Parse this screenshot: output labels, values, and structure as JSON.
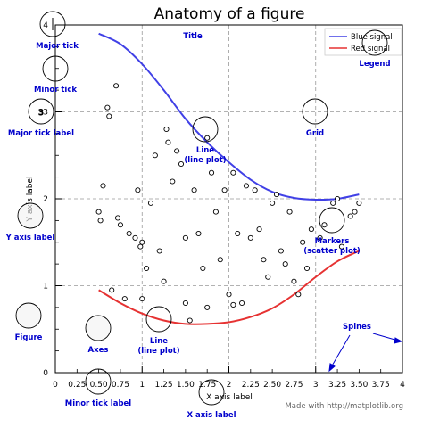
{
  "chart_data": {
    "type": "line",
    "title": "Anatomy of a figure",
    "xlabel": "X axis label",
    "ylabel": "Y axis label",
    "xlim": [
      0,
      4
    ],
    "ylim": [
      0,
      4
    ],
    "grid": true,
    "legend_placement": "top-right",
    "major_x_ticks": [
      0,
      1,
      2,
      3,
      4
    ],
    "minor_x_ticks": [
      "0.25",
      "0.50",
      "0.75",
      "1.25",
      "1.50",
      "1.75",
      "2.25",
      "2.50",
      "2.75",
      "3.25",
      "3.50",
      "3.75"
    ],
    "major_y_ticks": [
      0,
      1,
      2,
      3,
      4
    ],
    "series": [
      {
        "name": "Blue signal",
        "color": "#4040e6",
        "x": [
          0.5,
          0.75,
          1.0,
          1.25,
          1.5,
          1.75,
          2.0,
          2.25,
          2.5,
          2.75,
          3.0,
          3.25,
          3.5
        ],
        "y": [
          3.9,
          3.78,
          3.55,
          3.25,
          2.92,
          2.65,
          2.42,
          2.22,
          2.08,
          2.01,
          1.99,
          2.0,
          2.05
        ]
      },
      {
        "name": "Red signal",
        "color": "#e63232",
        "x": [
          0.5,
          0.75,
          1.0,
          1.25,
          1.5,
          1.75,
          2.0,
          2.25,
          2.5,
          2.75,
          3.0,
          3.25,
          3.5
        ],
        "y": [
          0.95,
          0.8,
          0.68,
          0.6,
          0.56,
          0.56,
          0.58,
          0.64,
          0.74,
          0.9,
          1.1,
          1.28,
          1.4
        ]
      }
    ],
    "scatter": {
      "name": "Markers",
      "x": [
        0.7,
        0.6,
        0.55,
        0.5,
        0.52,
        0.62,
        0.72,
        0.75,
        0.85,
        0.95,
        1.0,
        1.05,
        1.1,
        1.15,
        1.2,
        1.25,
        1.28,
        1.3,
        1.35,
        1.4,
        1.45,
        1.5,
        1.55,
        1.6,
        1.65,
        1.7,
        1.75,
        1.8,
        1.85,
        1.9,
        1.95,
        2.0,
        2.05,
        2.1,
        2.15,
        2.2,
        2.25,
        2.3,
        2.35,
        2.4,
        2.45,
        2.5,
        2.55,
        2.6,
        2.65,
        2.7,
        2.75,
        2.8,
        2.85,
        2.9,
        2.95,
        3.05,
        3.1,
        3.2,
        3.25,
        3.3,
        3.4,
        3.45,
        3.5,
        0.65,
        0.8,
        1.0,
        1.5,
        1.75,
        2.05,
        0.98,
        0.92
      ],
      "y": [
        3.3,
        3.05,
        2.15,
        1.85,
        1.75,
        2.95,
        1.78,
        1.7,
        1.6,
        2.1,
        1.5,
        1.2,
        1.95,
        2.5,
        1.4,
        1.05,
        2.8,
        2.65,
        2.2,
        2.55,
        2.4,
        1.55,
        0.6,
        2.1,
        1.6,
        1.2,
        2.7,
        2.3,
        1.85,
        1.3,
        2.1,
        0.9,
        2.3,
        1.6,
        0.8,
        2.15,
        1.55,
        2.1,
        1.65,
        1.3,
        1.1,
        1.95,
        2.05,
        1.4,
        1.25,
        1.85,
        1.05,
        0.9,
        1.5,
        1.2,
        1.65,
        1.55,
        1.7,
        1.95,
        2.0,
        1.45,
        1.8,
        1.85,
        1.95,
        0.95,
        0.85,
        0.85,
        0.8,
        0.75,
        0.78,
        1.45,
        1.55
      ]
    }
  },
  "annotations": {
    "major_tick": "Major tick",
    "minor_tick": "Minor tick",
    "major_tick_label": "Major tick label",
    "title": "Title",
    "legend": "Legend",
    "grid": "Grid",
    "y_axis_label": "Y axis label",
    "line_plot_1": "Line",
    "line_plot_1b": "(line plot)",
    "markers": "Markers",
    "markers_b": "(scatter plot)",
    "figure": "Figure",
    "axes": "Axes",
    "line_plot_2": "Line",
    "line_plot_2b": "(line plot)",
    "spines": "Spines",
    "minor_tick_label": "Minor tick label",
    "x_axis_label": "X axis label"
  },
  "credit": "Made with http://matplotlib.org"
}
